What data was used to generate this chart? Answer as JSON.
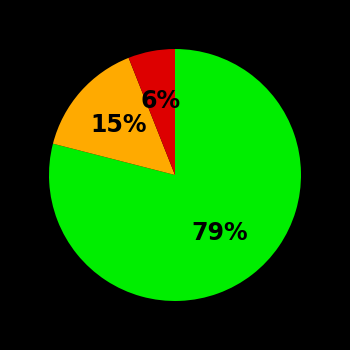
{
  "slices": [
    79,
    15,
    6
  ],
  "colors": [
    "#00ee00",
    "#ffaa00",
    "#dd0000"
  ],
  "labels": [
    "79%",
    "15%",
    "6%"
  ],
  "background_color": "#000000",
  "label_fontsize": 17,
  "label_fontweight": "bold",
  "startangle": 90,
  "figsize": [
    3.5,
    3.5
  ],
  "dpi": 100,
  "label_radii": [
    0.58,
    0.6,
    0.6
  ]
}
